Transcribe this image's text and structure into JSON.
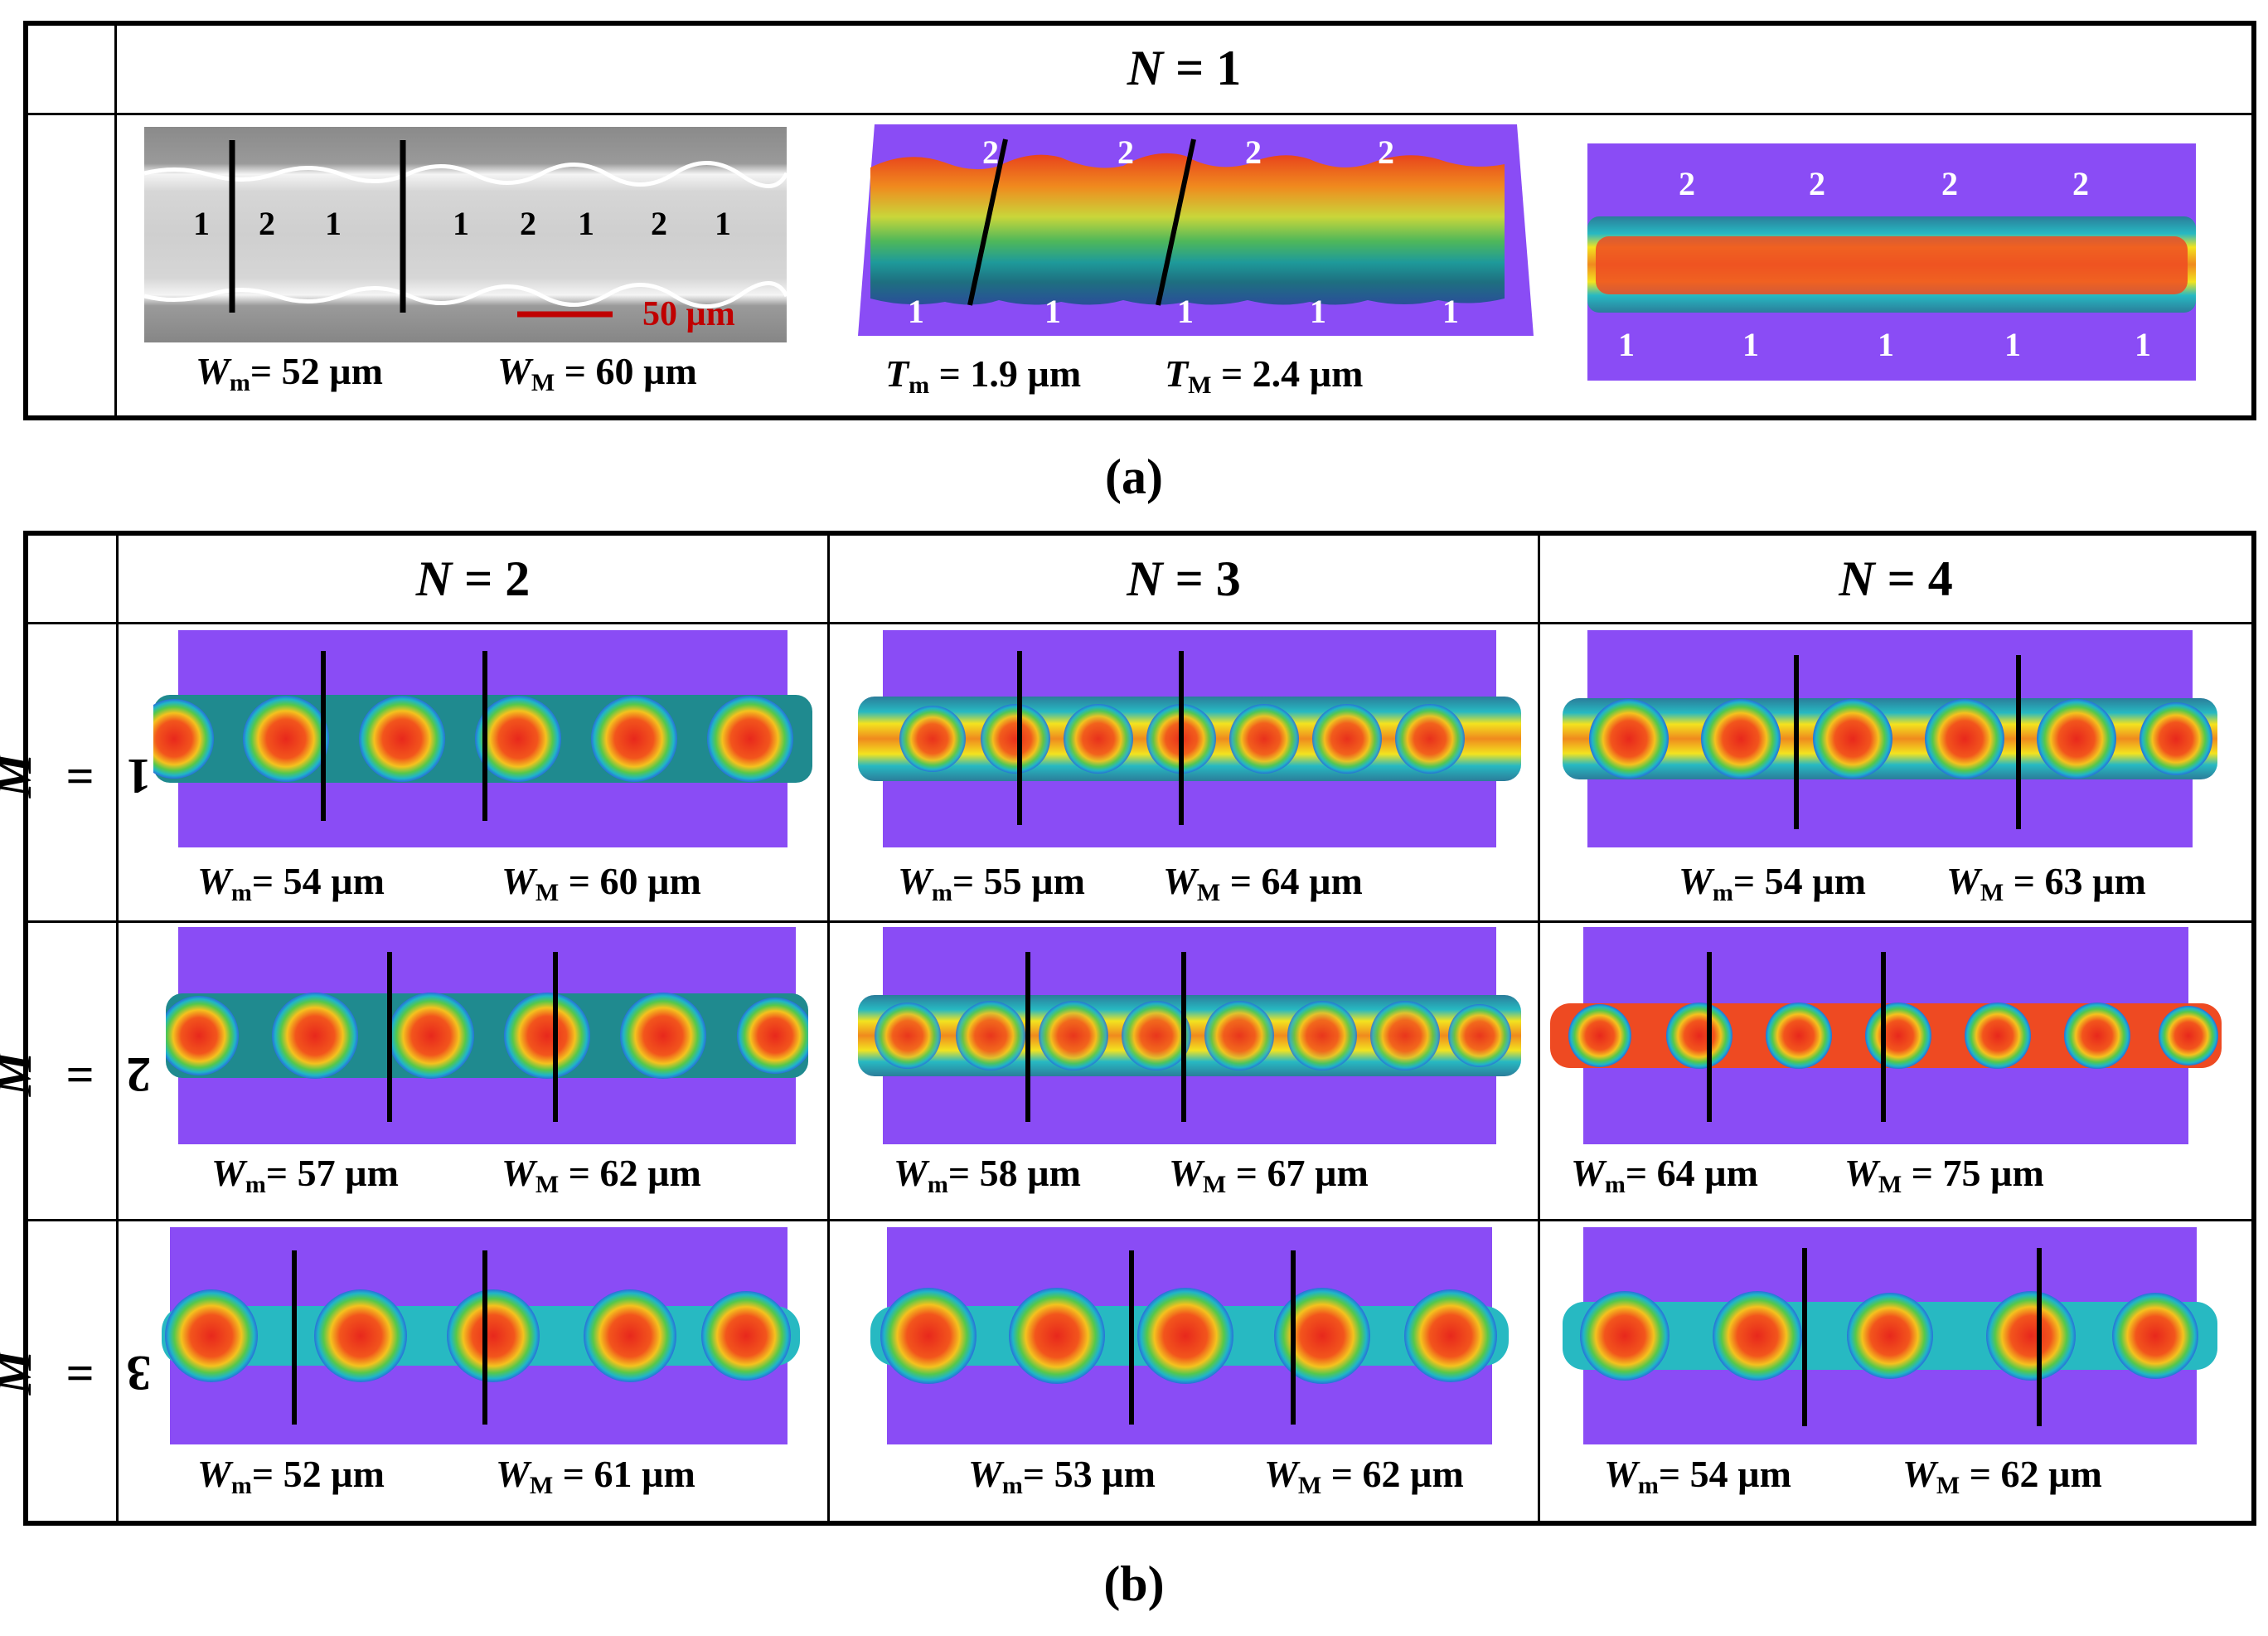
{
  "panel_a": {
    "header": {
      "var": "N",
      "eq": " = ",
      "val": "1"
    },
    "sem": {
      "labels": [
        "1",
        "2",
        "1",
        "1",
        "2",
        "1",
        "2",
        "1"
      ],
      "scale_bar": "50 µm"
    },
    "profile": {
      "top_labels": [
        "2",
        "2",
        "2",
        "2"
      ],
      "bottom_labels": [
        "1",
        "1",
        "1",
        "1",
        "1"
      ]
    },
    "topview": {
      "top_labels": [
        "2",
        "2",
        "2",
        "2"
      ],
      "bottom_labels": [
        "1",
        "1",
        "1",
        "1",
        "1"
      ]
    },
    "measurements": [
      {
        "sym": "W",
        "sub": "m",
        "text": "= 52 µm"
      },
      {
        "sym": "W",
        "sub": "M",
        "text": " = 60 µm"
      },
      {
        "sym": "T",
        "sub": "m",
        "text": " = 1.9 µm"
      },
      {
        "sym": "T",
        "sub": "M",
        "text": " = 2.4 µm"
      }
    ],
    "caption": "(a)"
  },
  "panel_b": {
    "col_headers": [
      {
        "var": "N",
        "eq": " = ",
        "val": "2"
      },
      {
        "var": "N",
        "eq": " = ",
        "val": "3"
      },
      {
        "var": "N",
        "eq": " = ",
        "val": "4"
      }
    ],
    "row_headers": [
      {
        "var": "M",
        "eq": " = ",
        "val": "1"
      },
      {
        "var": "M",
        "eq": " = ",
        "val": "2"
      },
      {
        "var": "M",
        "eq": " = ",
        "val": "3"
      }
    ],
    "cells": [
      [
        {
          "m": "= 54 µm",
          "M": " = 60 µm"
        },
        {
          "m": "= 55 µm",
          "M": " = 64 µm"
        },
        {
          "m": "= 54 µm",
          "M": " = 63 µm"
        }
      ],
      [
        {
          "m": "= 57 µm",
          "M": " = 62 µm"
        },
        {
          "m": "= 58 µm",
          "M": " = 67 µm"
        },
        {
          "m": "= 64 µm",
          "M": " = 75 µm"
        }
      ],
      [
        {
          "m": "= 52 µm",
          "M": " = 61 µm"
        },
        {
          "m": "= 53 µm",
          "M": " = 62 µm"
        },
        {
          "m": "= 54 µm",
          "M": " = 62 µm"
        }
      ]
    ],
    "caption": "(b)"
  },
  "colors": {
    "background_purple": "#8a4cf5",
    "scale_bar_red": "#c00000"
  }
}
